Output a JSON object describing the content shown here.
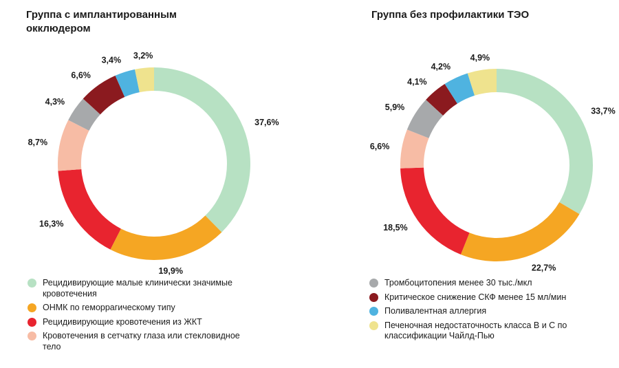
{
  "chart_data": [
    {
      "type": "pie",
      "title": "Группа с имплантированным окклюдером",
      "slices": [
        {
          "label": "Рецидивирующие малые клинически значимые кровотечения",
          "value": 37.6,
          "value_label": "37,6%",
          "color": "#b7e1c3"
        },
        {
          "label": "ОНМК по геморрагическому типу",
          "value": 19.9,
          "value_label": "19,9%",
          "color": "#f5a623"
        },
        {
          "label": "Рецидивирующие кровотечения из ЖКТ",
          "value": 16.3,
          "value_label": "16,3%",
          "color": "#e8242f"
        },
        {
          "label": "Кровотечения в сетчатку глаза или стекловидное тело",
          "value": 8.7,
          "value_label": "8,7%",
          "color": "#f7bca5"
        },
        {
          "label": "Тромбоцитопения менее 30 тыс./мкл",
          "value": 4.3,
          "value_label": "4,3%",
          "color": "#a7a9ab"
        },
        {
          "label": "Критическое снижение СКФ менее 15 мл/мин",
          "value": 6.6,
          "value_label": "6,6%",
          "color": "#8b1a1f"
        },
        {
          "label": "Поливалентная аллергия",
          "value": 3.4,
          "value_label": "3,4%",
          "color": "#4fb3e0"
        },
        {
          "label": "Печеночная недостаточность класса В и С по классификации Чайлд-Пью",
          "value": 3.2,
          "value_label": "3,2%",
          "color": "#efe38e"
        }
      ]
    },
    {
      "type": "pie",
      "title": "Группа без профилактики ТЭО",
      "slices": [
        {
          "label": "Рецидивирующие малые клинически значимые кровотечения",
          "value": 33.7,
          "value_label": "33,7%",
          "color": "#b7e1c3"
        },
        {
          "label": "ОНМК по геморрагическому типу",
          "value": 22.7,
          "value_label": "22,7%",
          "color": "#f5a623"
        },
        {
          "label": "Рецидивирующие кровотечения из ЖКТ",
          "value": 18.5,
          "value_label": "18,5%",
          "color": "#e8242f"
        },
        {
          "label": "Кровотечения в сетчатку глаза или стекловидное тело",
          "value": 6.6,
          "value_label": "6,6%",
          "color": "#f7bca5"
        },
        {
          "label": "Тромбоцитопения менее 30 тыс./мкл",
          "value": 5.9,
          "value_label": "5,9%",
          "color": "#a7a9ab"
        },
        {
          "label": "Критическое снижение СКФ менее 15 мл/мин",
          "value": 4.1,
          "value_label": "4,1%",
          "color": "#8b1a1f"
        },
        {
          "label": "Поливалентная аллергия",
          "value": 4.2,
          "value_label": "4,2%",
          "color": "#4fb3e0"
        },
        {
          "label": "Печеночная недостаточность класса В и С по классификации Чайлд-Пью",
          "value": 4.9,
          "value_label": "4,9%",
          "color": "#efe38e"
        }
      ]
    }
  ],
  "legend_left": [
    {
      "label": "Рецидивирующие малые клинически значимые кровотечения",
      "color": "#b7e1c3"
    },
    {
      "label": "ОНМК по геморрагическому типу",
      "color": "#f5a623"
    },
    {
      "label": "Рецидивирующие кровотечения из ЖКТ",
      "color": "#e8242f"
    },
    {
      "label": "Кровотечения в сетчатку глаза или стекловидное тело",
      "color": "#f7bca5"
    }
  ],
  "legend_right": [
    {
      "label": "Тромбоцитопения менее 30 тыс./мкл",
      "color": "#a7a9ab"
    },
    {
      "label": "Критическое снижение СКФ менее 15 мл/мин",
      "color": "#8b1a1f"
    },
    {
      "label": "Поливалентная аллергия",
      "color": "#4fb3e0"
    },
    {
      "label": "Печеночная недостаточность класса В и С по классификации Чайлд-Пью",
      "color": "#efe38e"
    }
  ]
}
